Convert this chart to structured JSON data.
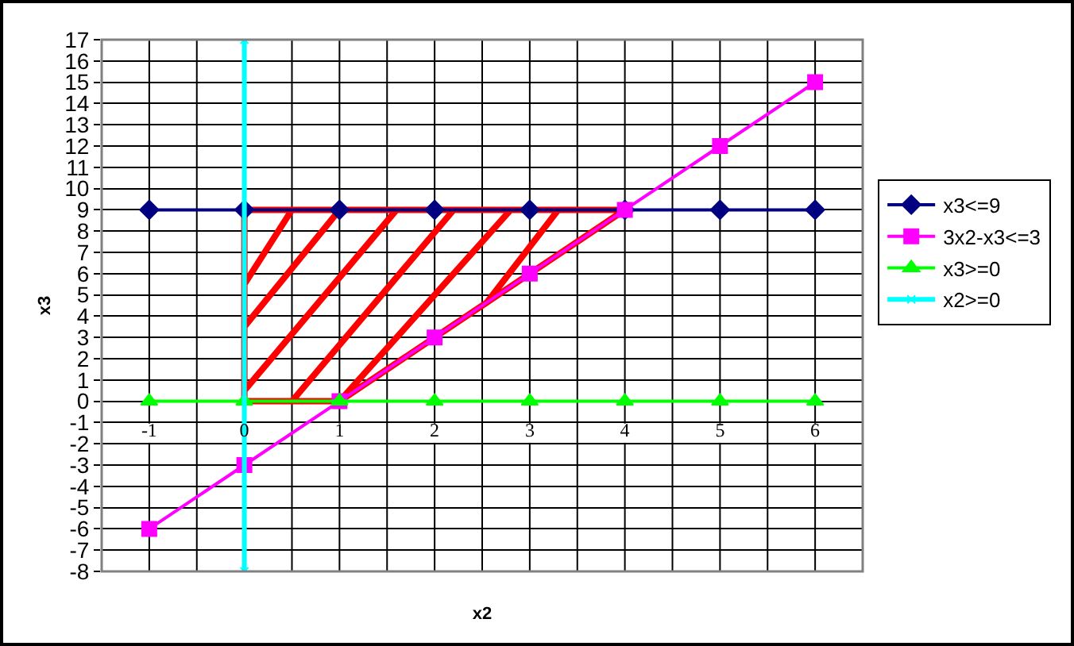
{
  "chart_data": {
    "type": "line",
    "xlabel": "x2",
    "ylabel": "x3",
    "x": [
      -1,
      0,
      1,
      2,
      3,
      4,
      5,
      6
    ],
    "series": [
      {
        "name": "x3<=9",
        "color": "#000080",
        "marker": "diamond",
        "values": [
          9,
          9,
          9,
          9,
          9,
          9,
          9,
          9
        ]
      },
      {
        "name": "3x2-x3<=3",
        "color": "#ff00ff",
        "marker": "square",
        "values": [
          -6,
          -3,
          0,
          3,
          6,
          9,
          12,
          15
        ]
      },
      {
        "name": "x3>=0",
        "color": "#00ff00",
        "marker": "triangle",
        "values": [
          0,
          0,
          0,
          0,
          0,
          0,
          0,
          0
        ]
      },
      {
        "name": "x2>=0",
        "color": "#00ffff",
        "marker": "cross",
        "x": [
          0,
          0
        ],
        "values": [
          17,
          -8
        ]
      },
      {
        "color": "#ff0000",
        "marker": "none",
        "x": [
          0.5,
          0,
          0,
          4,
          1,
          0,
          0,
          0,
          1,
          1.6,
          0,
          0,
          0.5,
          2.2,
          2.8,
          1,
          2.55,
          3.3
        ],
        "values": [
          9,
          5.5,
          9,
          9,
          0,
          0,
          5.5,
          3.5,
          9,
          9,
          0.5,
          0,
          0,
          9,
          9,
          0,
          4.65,
          9
        ]
      }
    ],
    "xlim": [
      -1.5,
      6.5
    ],
    "xticks": [
      -1,
      {
        "value": -0.5,
        "label": null
      },
      0,
      {
        "value": 0.5,
        "label": null
      },
      1,
      {
        "value": 1.5,
        "label": null
      },
      2,
      {
        "value": 2.5,
        "label": null
      },
      3,
      {
        "value": 3.5,
        "label": null
      },
      4,
      {
        "value": 4.5,
        "label": null
      },
      5,
      {
        "value": 5.5,
        "label": null
      },
      6
    ],
    "ylim": [
      -8,
      17
    ],
    "yticks": [
      -8,
      -7,
      -6,
      -5,
      -4,
      -3,
      -2,
      -1,
      0,
      1,
      2,
      3,
      4,
      5,
      6,
      7,
      8,
      9,
      10,
      11,
      12,
      13,
      14,
      15,
      16,
      17
    ],
    "grid": true,
    "legend": "right",
    "line_style": "solid"
  }
}
